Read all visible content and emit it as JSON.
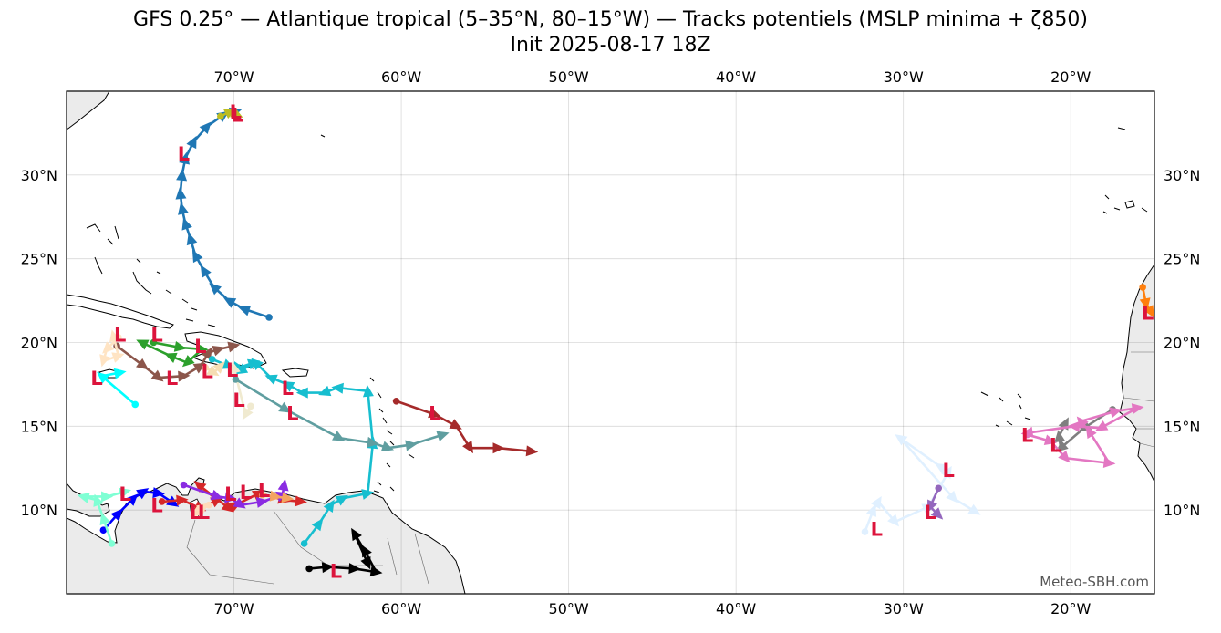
{
  "title": {
    "line1": "GFS 0.25° — Atlantique tropical (5–35°N, 80–15°W) — Tracks potentiels (MSLP minima + ζ850)",
    "line2": "Init 2025-08-17 18Z"
  },
  "map": {
    "extent": {
      "lon_min": -80,
      "lon_max": -15,
      "lat_min": 5,
      "lat_max": 35
    },
    "lon_ticks": [
      {
        "lon": -70,
        "label": "70°W"
      },
      {
        "lon": -60,
        "label": "60°W"
      },
      {
        "lon": -50,
        "label": "50°W"
      },
      {
        "lon": -40,
        "label": "40°W"
      },
      {
        "lon": -30,
        "label": "30°W"
      },
      {
        "lon": -20,
        "label": "20°W"
      }
    ],
    "lat_ticks": [
      {
        "lat": 10,
        "label": "10°N"
      },
      {
        "lat": 15,
        "label": "15°N"
      },
      {
        "lat": 20,
        "label": "20°N"
      },
      {
        "lat": 25,
        "label": "25°N"
      },
      {
        "lat": 30,
        "label": "30°N"
      }
    ],
    "land_color": "#ebebeb",
    "grid": true,
    "credit": "Meteo-SBH.com",
    "low_marker": "L",
    "low_color": "#dc143c"
  },
  "tracks": [
    {
      "color": "#1f77b4",
      "points": [
        [
          -67.9,
          21.5
        ],
        [
          -69.4,
          22.0
        ],
        [
          -70.3,
          22.5
        ],
        [
          -71.2,
          23.3
        ],
        [
          -71.8,
          24.3
        ],
        [
          -72.3,
          25.2
        ],
        [
          -72.6,
          26.2
        ],
        [
          -72.9,
          27.1
        ],
        [
          -73.1,
          28.0
        ],
        [
          -73.2,
          28.9
        ],
        [
          -73.1,
          30.0
        ],
        [
          -72.9,
          31.0
        ],
        [
          -72.4,
          32.0
        ],
        [
          -71.6,
          32.9
        ],
        [
          -70.6,
          33.6
        ],
        [
          -69.9,
          33.8
        ]
      ],
      "low": [
        -69.9,
        33.8
      ],
      "low2": [
        -73.0,
        31.3
      ]
    },
    {
      "color": "#bcbd22",
      "points": [
        [
          -70.8,
          33.5
        ],
        [
          -70.2,
          33.8
        ],
        [
          -69.8,
          33.6
        ]
      ],
      "low": [
        -69.8,
        33.6
      ]
    },
    {
      "color": "#2ca02c",
      "points": [
        [
          -74.8,
          20.0
        ],
        [
          -73.2,
          19.7
        ],
        [
          -71.9,
          19.6
        ],
        [
          -72.8,
          18.8
        ],
        [
          -73.8,
          19.2
        ],
        [
          -75.5,
          20.0
        ]
      ],
      "low": [
        -74.6,
        20.5
      ],
      "low2": [
        -72.0,
        19.8
      ]
    },
    {
      "color": "#8c564b",
      "points": [
        [
          -77.0,
          19.8
        ],
        [
          -75.4,
          18.6
        ],
        [
          -74.5,
          17.9
        ],
        [
          -73.0,
          18.0
        ],
        [
          -72.0,
          18.6
        ],
        [
          -71.5,
          19.4
        ],
        [
          -70.9,
          19.6
        ],
        [
          -70.0,
          19.8
        ]
      ],
      "low": [
        -73.7,
        17.9
      ]
    },
    {
      "color": "#ffe4c4",
      "points": [
        [
          -76.9,
          20.3
        ],
        [
          -77.6,
          19.6
        ],
        [
          -77.8,
          18.9
        ],
        [
          -76.9,
          19.2
        ],
        [
          -77.2,
          20.4
        ]
      ],
      "low": [
        -76.8,
        20.5
      ]
    },
    {
      "color": "#00ffff",
      "points": [
        [
          -75.9,
          16.3
        ],
        [
          -77.9,
          18.0
        ],
        [
          -76.8,
          18.2
        ]
      ],
      "low": [
        -78.2,
        17.9
      ]
    },
    {
      "color": "#17becf",
      "points": [
        [
          -71.3,
          19.0
        ],
        [
          -70.3,
          18.6
        ],
        [
          -69.7,
          18.5
        ],
        [
          -68.8,
          18.8
        ],
        [
          -69.6,
          18.3
        ]
      ],
      "low": [
        -70.1,
        18.4
      ]
    },
    {
      "color": "#f5deb3",
      "points": [
        [
          -71.7,
          18.5
        ],
        [
          -71.2,
          18.2
        ],
        [
          -70.8,
          18.6
        ]
      ],
      "low": [
        -71.6,
        18.3
      ]
    },
    {
      "color": "#f0ead0",
      "points": [
        [
          -69.0,
          16.2
        ],
        [
          -69.3,
          15.7
        ],
        [
          -70.0,
          18.5
        ]
      ],
      "low": [
        -69.7,
        16.6
      ]
    },
    {
      "color": "#17becf",
      "points": [
        [
          -65.8,
          8.0
        ],
        [
          -64.9,
          9.2
        ],
        [
          -64.2,
          10.3
        ],
        [
          -63.5,
          10.7
        ],
        [
          -62.0,
          11.0
        ],
        [
          -61.7,
          14.0
        ],
        [
          -62.0,
          17.1
        ],
        [
          -63.8,
          17.3
        ],
        [
          -64.6,
          17.0
        ],
        [
          -65.9,
          17.0
        ],
        [
          -66.8,
          17.5
        ],
        [
          -67.8,
          17.9
        ],
        [
          -68.7,
          18.8
        ]
      ],
      "low": [
        -66.8,
        17.3
      ]
    },
    {
      "color": "#5f9ea0",
      "points": [
        [
          -69.9,
          17.8
        ],
        [
          -66.9,
          16.0
        ],
        [
          -63.7,
          14.3
        ],
        [
          -61.7,
          14.0
        ],
        [
          -60.8,
          13.7
        ],
        [
          -59.4,
          13.9
        ],
        [
          -57.5,
          14.5
        ]
      ],
      "low": [
        -66.5,
        15.8
      ]
    },
    {
      "color": "#a52a2a",
      "points": [
        [
          -60.3,
          16.5
        ],
        [
          -58.0,
          15.7
        ],
        [
          -56.7,
          15.0
        ],
        [
          -55.9,
          13.7
        ],
        [
          -54.2,
          13.7
        ],
        [
          -52.2,
          13.5
        ]
      ],
      "low": [
        -58.0,
        15.8
      ]
    },
    {
      "color": "#000000",
      "points": [
        [
          -65.5,
          6.5
        ],
        [
          -64.4,
          6.6
        ],
        [
          -62.8,
          6.5
        ],
        [
          -61.5,
          6.3
        ],
        [
          -62.2,
          7.6
        ],
        [
          -62.8,
          8.6
        ],
        [
          -62.0,
          6.8
        ]
      ],
      "low": [
        -63.9,
        6.4
      ]
    },
    {
      "color": "#0000ff",
      "points": [
        [
          -77.8,
          8.8
        ],
        [
          -76.9,
          9.8
        ],
        [
          -76.0,
          10.7
        ],
        [
          -75.4,
          11.1
        ],
        [
          -74.5,
          11.0
        ],
        [
          -73.6,
          10.4
        ]
      ],
      "low": [
        -74.6,
        10.3
      ],
      "low2": [
        -76.5,
        11.0
      ]
    },
    {
      "color": "#7fffd4",
      "points": [
        [
          -77.3,
          8.0
        ],
        [
          -77.8,
          9.5
        ],
        [
          -78.2,
          10.6
        ],
        [
          -79.0,
          10.8
        ],
        [
          -77.6,
          10.8
        ],
        [
          -76.5,
          11.1
        ]
      ],
      "low": [
        -76.5,
        11.0
      ]
    },
    {
      "color": "#d62728",
      "points": [
        [
          -74.3,
          10.5
        ],
        [
          -73.1,
          10.6
        ],
        [
          -72.0,
          10.1
        ],
        [
          -71.0,
          10.6
        ],
        [
          -72.1,
          11.5
        ],
        [
          -70.3,
          10.1
        ],
        [
          -69.9,
          10.3
        ],
        [
          -68.5,
          11.0
        ],
        [
          -67.0,
          10.6
        ],
        [
          -66.0,
          10.5
        ]
      ],
      "low": [
        -71.8,
        9.9
      ],
      "low2": [
        -69.3,
        11.1
      ]
    },
    {
      "color": "#8a2be2",
      "points": [
        [
          -73.0,
          11.5
        ],
        [
          -71.0,
          10.8
        ],
        [
          -70.2,
          10.7
        ],
        [
          -69.6,
          10.3
        ],
        [
          -68.3,
          10.5
        ],
        [
          -67.1,
          10.9
        ],
        [
          -67.0,
          11.5
        ]
      ],
      "low": [
        -70.2,
        11.0
      ]
    },
    {
      "color": "#ffdab9",
      "points": [
        [
          -71.5,
          10.3
        ],
        [
          -72.3,
          9.8
        ],
        [
          -71.8,
          10.2
        ]
      ],
      "low": [
        -72.3,
        9.9
      ]
    },
    {
      "color": "#f4a460",
      "points": [
        [
          -68.3,
          10.9
        ],
        [
          -67.5,
          10.8
        ],
        [
          -66.8,
          10.7
        ]
      ],
      "low": [
        -68.2,
        11.2
      ]
    },
    {
      "color": "#e0f0ff",
      "points": [
        [
          -32.3,
          8.7
        ],
        [
          -31.8,
          10.0
        ],
        [
          -31.5,
          10.5
        ],
        [
          -30.5,
          9.3
        ],
        [
          -28.5,
          10.2
        ],
        [
          -27.3,
          12.3
        ],
        [
          -27.8,
          12.6
        ],
        [
          -30.2,
          14.3
        ],
        [
          -27.0,
          10.7
        ],
        [
          -25.7,
          9.9
        ]
      ],
      "low": [
        -31.6,
        8.9
      ],
      "low2": [
        -27.3,
        12.4
      ]
    },
    {
      "color": "#9467bd",
      "points": [
        [
          -27.9,
          11.3
        ],
        [
          -28.4,
          10.2
        ],
        [
          -27.9,
          9.7
        ]
      ],
      "low": [
        -28.4,
        9.9
      ]
    },
    {
      "color": "#7f7f7f",
      "points": [
        [
          -17.5,
          16.0
        ],
        [
          -19.2,
          14.9
        ],
        [
          -20.6,
          13.7
        ],
        [
          -20.7,
          14.4
        ],
        [
          -20.3,
          15.2
        ]
      ],
      "low": [
        -20.9,
        13.9
      ]
    },
    {
      "color": "#e377c2",
      "points": [
        [
          -22.6,
          14.5
        ],
        [
          -21.2,
          14.1
        ],
        [
          -20.3,
          13.1
        ],
        [
          -17.7,
          12.8
        ],
        [
          -18.9,
          14.7
        ],
        [
          -19.4,
          15.3
        ],
        [
          -17.3,
          15.9
        ],
        [
          -16.0,
          16.1
        ],
        [
          -18.2,
          14.9
        ],
        [
          -19.8,
          15.0
        ],
        [
          -22.6,
          14.6
        ]
      ],
      "low": [
        -22.6,
        14.5
      ]
    },
    {
      "color": "#ff7f0e",
      "points": [
        [
          -15.7,
          23.3
        ],
        [
          -15.5,
          22.3
        ],
        [
          -15.2,
          21.8
        ]
      ],
      "low": [
        -15.4,
        21.8
      ]
    }
  ]
}
